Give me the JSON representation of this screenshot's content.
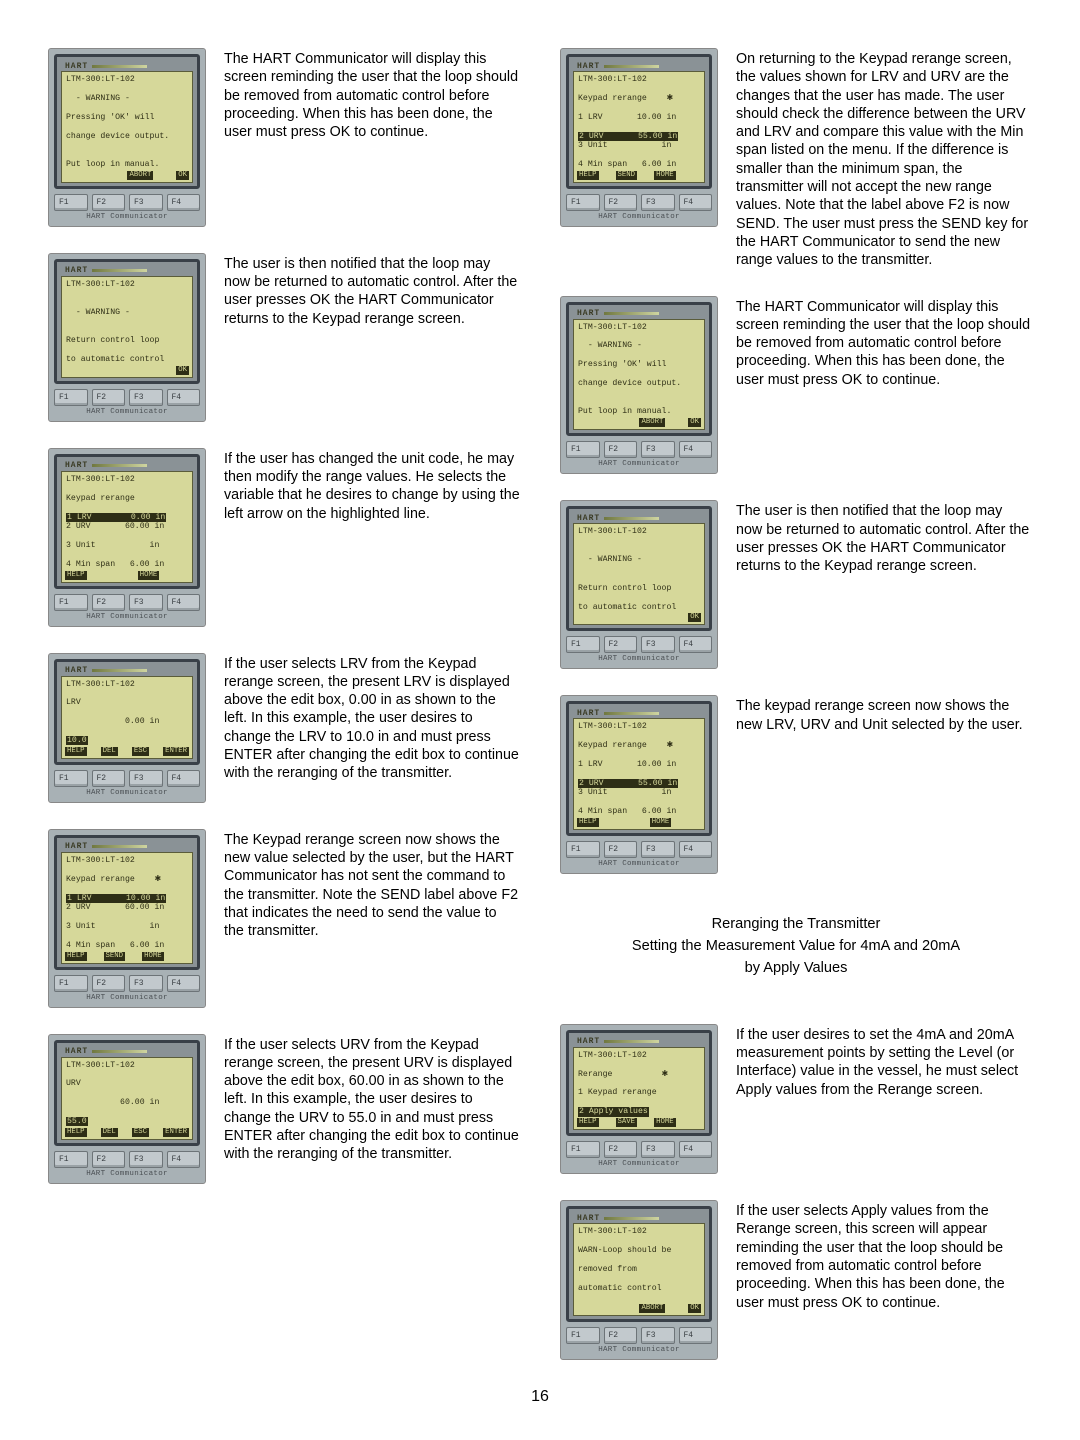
{
  "pageNumber": "16",
  "device": {
    "logo": "HART",
    "footer": "HART Communicator",
    "fkeys": [
      "F1",
      "F2",
      "F3",
      "F4"
    ]
  },
  "heading": {
    "line1": "Reranging the Transmitter",
    "line2": "Setting the Measurement Value for 4mA and 20mA",
    "line3": "by Apply Values"
  },
  "left": [
    {
      "screen": {
        "lines": [
          {
            "t": "LTM-300:LT-102"
          },
          {
            "t": "  - WARNING -"
          },
          {
            "t": "Pressing 'OK' will"
          },
          {
            "t": "change device output."
          },
          {
            "t": ""
          },
          {
            "t": "Put loop in manual."
          }
        ],
        "soft": [
          {
            "t": ""
          },
          {
            "t": ""
          },
          {
            "t": "ABORT"
          },
          {
            "t": "OK"
          }
        ]
      },
      "text": "The HART Communicator will display this screen reminding the user that the loop should be removed from automatic control before proceeding.  When this has been done, the user must press OK to continue."
    },
    {
      "screen": {
        "lines": [
          {
            "t": "LTM-300:LT-102"
          },
          {
            "t": ""
          },
          {
            "t": "  - WARNING -"
          },
          {
            "t": ""
          },
          {
            "t": "Return control loop"
          },
          {
            "t": "to automatic control"
          }
        ],
        "soft": [
          {
            "t": ""
          },
          {
            "t": ""
          },
          {
            "t": ""
          },
          {
            "t": "OK"
          }
        ]
      },
      "text": "The user is then notified that the loop may now be returned to automatic control.  After the user presses OK the HART Communicator returns to the Keypad rerange screen."
    },
    {
      "screen": {
        "lines": [
          {
            "t": "LTM-300:LT-102"
          },
          {
            "t": "Keypad rerange"
          },
          {
            "t": "1 LRV        0.00 in",
            "inv": true
          },
          {
            "t": "2 URV       60.00 in"
          },
          {
            "t": "3 Unit           in"
          },
          {
            "t": "4 Min span   6.00 in"
          }
        ],
        "soft": [
          {
            "t": "HELP"
          },
          {
            "t": ""
          },
          {
            "t": "HOME"
          },
          {
            "t": ""
          }
        ]
      },
      "text": "If the user has changed the unit code, he may then modify the range values.  He selects the variable that he desires to change by using the left arrow on the highlighted line."
    },
    {
      "screen": {
        "lines": [
          {
            "t": "LTM-300:LT-102"
          },
          {
            "t": "LRV"
          },
          {
            "t": "            0.00 in"
          },
          {
            "t": "10.0",
            "inv": true
          },
          {
            "t": ""
          }
        ],
        "soft": [
          {
            "t": "HELP"
          },
          {
            "t": "DEL"
          },
          {
            "t": "ESC"
          },
          {
            "t": "ENTER"
          }
        ]
      },
      "text": "If the user selects LRV from the Keypad rerange screen, the present LRV is displayed above the edit box, 0.00 in as shown to the left.  In this example, the user desires to change the LRV to 10.0 in and must press ENTER after changing the edit box to continue with the reranging of the transmitter."
    },
    {
      "screen": {
        "lines": [
          {
            "t": "LTM-300:LT-102"
          },
          {
            "t": "Keypad rerange    ✱"
          },
          {
            "t": "1 LRV       10.00 in",
            "inv": true
          },
          {
            "t": "2 URV       60.00 in"
          },
          {
            "t": "3 Unit           in"
          },
          {
            "t": "4 Min span   6.00 in"
          }
        ],
        "soft": [
          {
            "t": "HELP"
          },
          {
            "t": "SEND"
          },
          {
            "t": "HOME"
          },
          {
            "t": ""
          }
        ]
      },
      "text": "The Keypad rerange screen now shows the new value selected by the user, but the HART Communicator has not sent the command to the transmitter.  Note the SEND label above F2 that indicates the need to send the value to the transmitter."
    },
    {
      "screen": {
        "lines": [
          {
            "t": "LTM-300:LT-102"
          },
          {
            "t": "URV"
          },
          {
            "t": "           60.00 in"
          },
          {
            "t": "55.0",
            "inv": true
          },
          {
            "t": ""
          }
        ],
        "soft": [
          {
            "t": "HELP"
          },
          {
            "t": "DEL"
          },
          {
            "t": "ESC"
          },
          {
            "t": "ENTER"
          }
        ]
      },
      "text": "If the user selects URV from the Keypad rerange screen, the present URV is displayed above the edit box, 60.00 in as shown to the left.  In this example, the user desires to change the URV to 55.0 in and must press ENTER after changing the edit box to continue with the reranging of the transmitter."
    }
  ],
  "right": [
    {
      "screen": {
        "lines": [
          {
            "t": "LTM-300:LT-102"
          },
          {
            "t": "Keypad rerange    ✱"
          },
          {
            "t": "1 LRV       10.00 in"
          },
          {
            "t": "2 URV       55.00 in",
            "inv": true
          },
          {
            "t": "3 Unit           in"
          },
          {
            "t": "4 Min span   6.00 in"
          }
        ],
        "soft": [
          {
            "t": "HELP"
          },
          {
            "t": "SEND"
          },
          {
            "t": "HOME"
          },
          {
            "t": ""
          }
        ]
      },
      "text": "On returning to the Keypad rerange screen, the values shown for LRV and URV are the changes that the user has made.  The user should check the difference between the URV and LRV and compare this value with the Min span listed on the menu.  If the difference is smaller than the minimum span, the transmitter will not accept the new range values.  Note that the label above F2 is now SEND.  The user must press the SEND key for the HART Communicator to send the new range values to the transmitter."
    },
    {
      "screen": {
        "lines": [
          {
            "t": "LTM-300:LT-102"
          },
          {
            "t": "  - WARNING -"
          },
          {
            "t": "Pressing 'OK' will"
          },
          {
            "t": "change device output."
          },
          {
            "t": ""
          },
          {
            "t": "Put loop in manual."
          }
        ],
        "soft": [
          {
            "t": ""
          },
          {
            "t": ""
          },
          {
            "t": "ABORT"
          },
          {
            "t": "OK"
          }
        ]
      },
      "text": "The HART Communicator will display this screen reminding the user that the loop should be removed from automatic control before proceeding.  When this has been done, the user must press OK to continue."
    },
    {
      "screen": {
        "lines": [
          {
            "t": "LTM-300:LT-102"
          },
          {
            "t": ""
          },
          {
            "t": "  - WARNING -"
          },
          {
            "t": ""
          },
          {
            "t": "Return control loop"
          },
          {
            "t": "to automatic control"
          }
        ],
        "soft": [
          {
            "t": ""
          },
          {
            "t": ""
          },
          {
            "t": ""
          },
          {
            "t": "OK"
          }
        ]
      },
      "text": "The user is then notified that the loop may now be returned to automatic control.  After the user presses OK the HART Communicator returns to the Keypad rerange screen."
    },
    {
      "screen": {
        "lines": [
          {
            "t": "LTM-300:LT-102"
          },
          {
            "t": "Keypad rerange    ✱"
          },
          {
            "t": "1 LRV       10.00 in"
          },
          {
            "t": "2 URV       55.00 in",
            "inv": true
          },
          {
            "t": "3 Unit           in"
          },
          {
            "t": "4 Min span   6.00 in"
          }
        ],
        "soft": [
          {
            "t": "HELP"
          },
          {
            "t": ""
          },
          {
            "t": "HOME"
          },
          {
            "t": ""
          }
        ]
      },
      "text": "The keypad rerange screen now shows the new LRV, URV and Unit selected by the user."
    },
    {
      "screen": {
        "lines": [
          {
            "t": "LTM-300:LT-102"
          },
          {
            "t": "Rerange          ✱"
          },
          {
            "t": "1 Keypad rerange"
          },
          {
            "t": "2 Apply values",
            "inv": true
          },
          {
            "t": ""
          }
        ],
        "soft": [
          {
            "t": "HELP"
          },
          {
            "t": "SAVE"
          },
          {
            "t": "HOME"
          },
          {
            "t": ""
          }
        ]
      },
      "text": "If the user desires to set the 4mA and 20mA measurement points by setting the Level (or Interface) value in the vessel, he must select Apply values from the Rerange screen."
    },
    {
      "screen": {
        "lines": [
          {
            "t": "LTM-300:LT-102"
          },
          {
            "t": "WARN-Loop should be"
          },
          {
            "t": "removed from"
          },
          {
            "t": "automatic control"
          },
          {
            "t": ""
          }
        ],
        "soft": [
          {
            "t": ""
          },
          {
            "t": ""
          },
          {
            "t": "ABORT"
          },
          {
            "t": "OK"
          }
        ]
      },
      "text": "If the user selects Apply values from the Rerange screen, this screen will appear reminding the user that the loop should be removed from automatic control before proceeding.  When this has been done, the user must press OK to continue."
    }
  ]
}
